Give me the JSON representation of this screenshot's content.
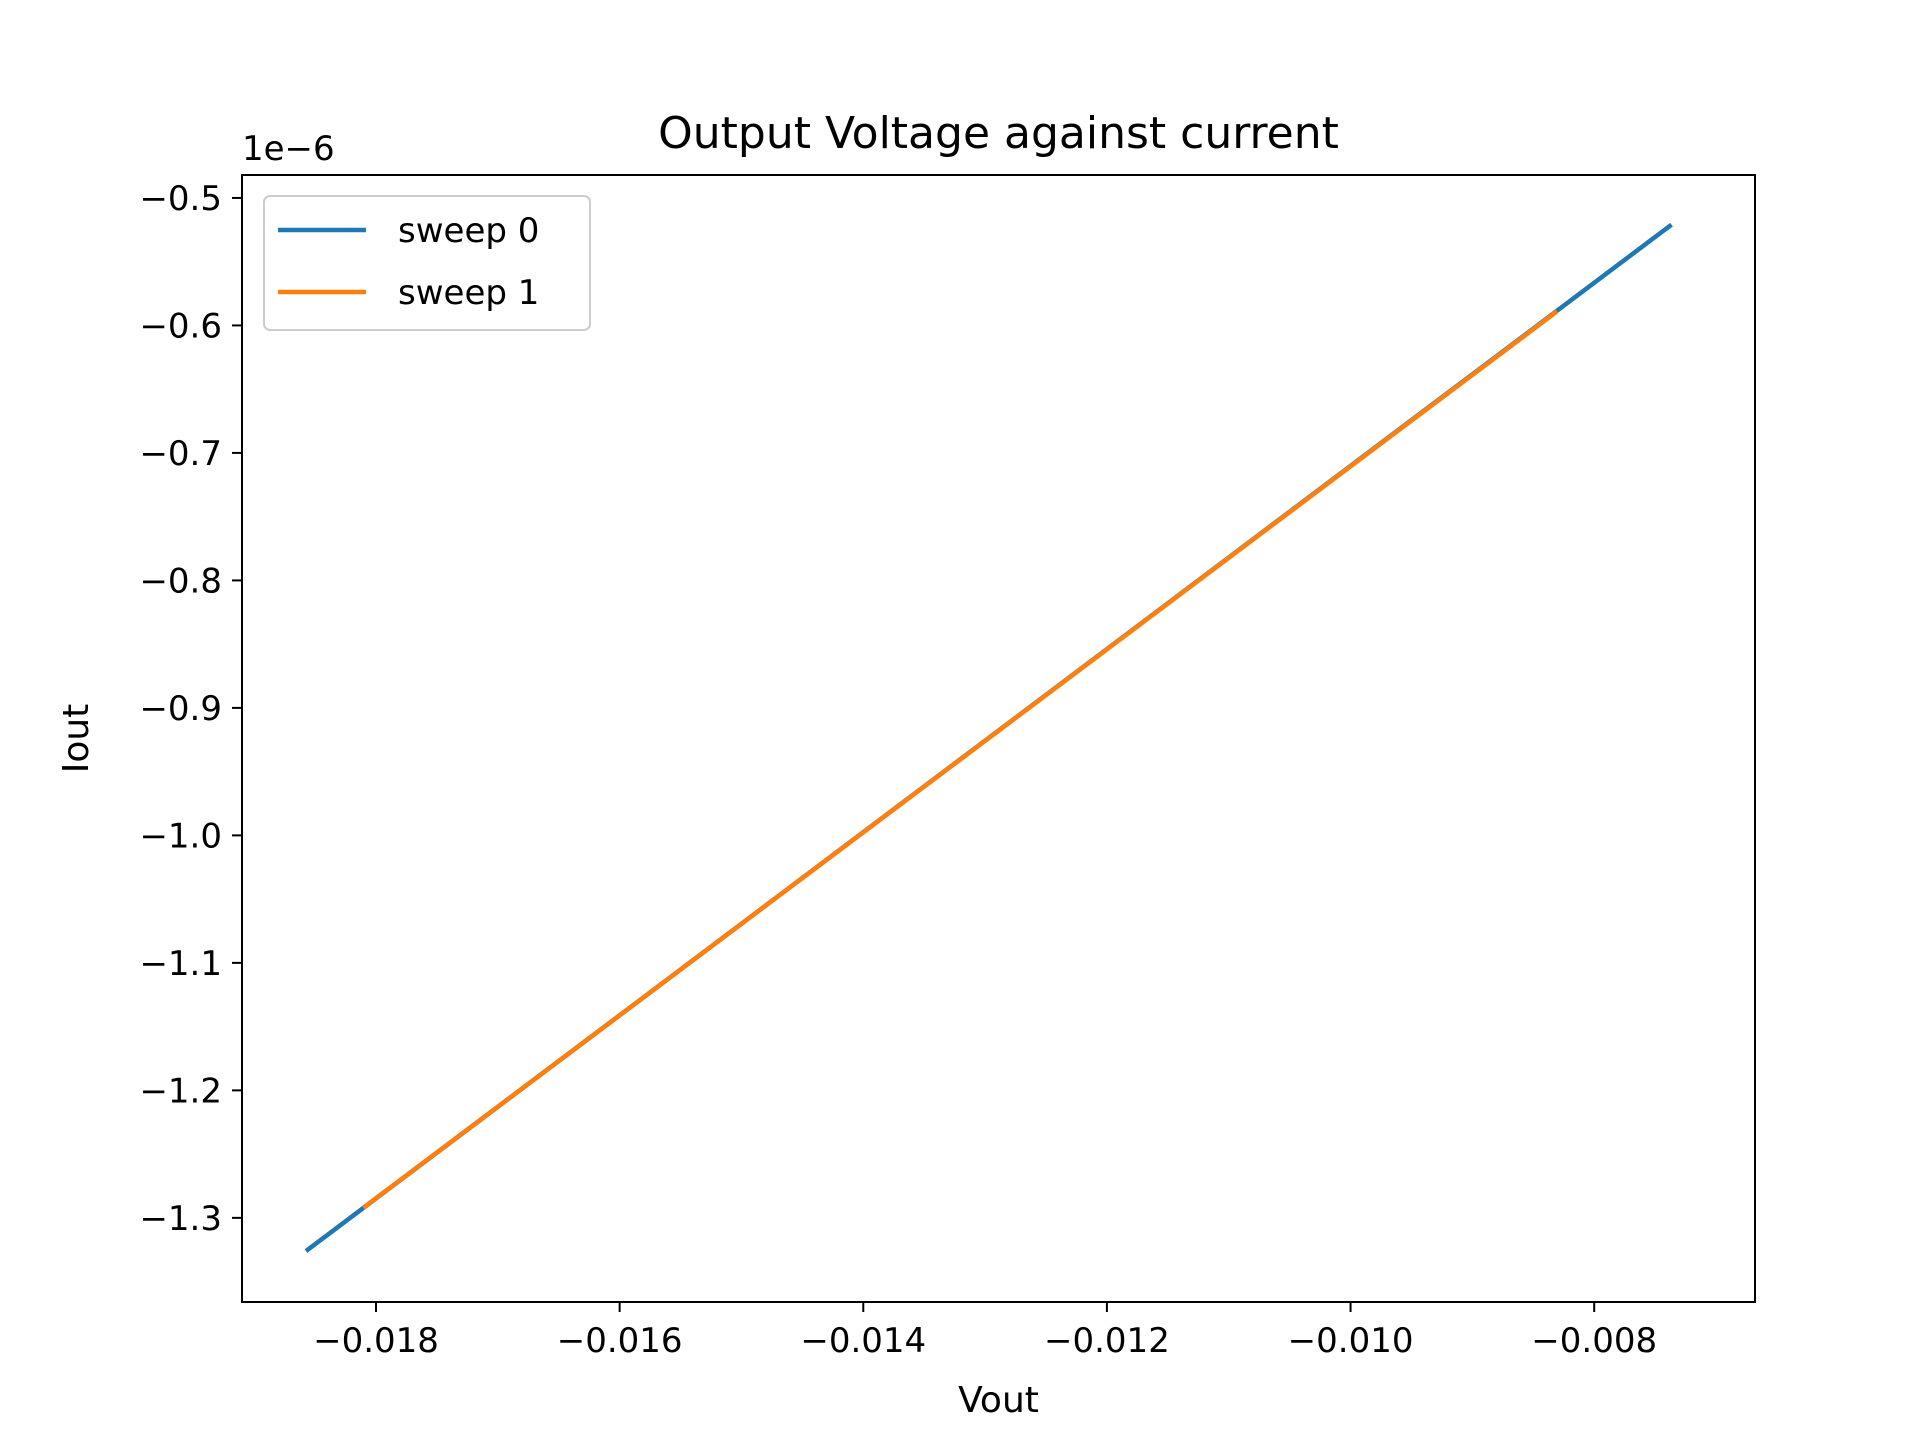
{
  "chart_data": {
    "type": "line",
    "title": "Output Voltage against current",
    "xlabel": "Vout",
    "ylabel": "Iout",
    "y_offset_label": "1e−6",
    "xlim": [
      -0.0191,
      -0.00668
    ],
    "ylim": [
      -1.366,
      -0.482
    ],
    "x_ticks": [
      -0.018,
      -0.016,
      -0.014,
      -0.012,
      -0.01,
      -0.008
    ],
    "x_tick_labels": [
      "−0.018",
      "−0.016",
      "−0.014",
      "−0.012",
      "−0.010",
      "−0.008"
    ],
    "y_ticks": [
      -0.5,
      -0.6,
      -0.7,
      -0.8,
      -0.9,
      -1.0,
      -1.1,
      -1.2,
      -1.3
    ],
    "y_tick_labels": [
      "−0.5",
      "−0.6",
      "−0.7",
      "−0.8",
      "−0.9",
      "−1.0",
      "−1.1",
      "−1.2",
      "−1.3"
    ],
    "grid": false,
    "legend_position": "top-left",
    "series": [
      {
        "name": "sweep 0",
        "color": "#1f77b4",
        "x": [
          -0.01856,
          -0.00738
        ],
        "y": [
          -1.325,
          -0.522
        ]
      },
      {
        "name": "sweep 1",
        "color": "#ff7f0e",
        "x": [
          -0.01809,
          -0.00832
        ],
        "y": [
          -1.291,
          -0.59
        ]
      }
    ]
  }
}
